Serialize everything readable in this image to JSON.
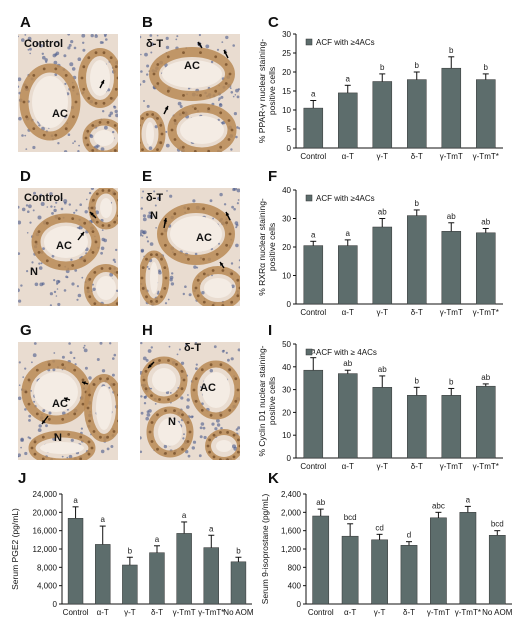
{
  "panels": {
    "A": {
      "letter": "A",
      "label": "Control",
      "tags": [
        "AC"
      ]
    },
    "B": {
      "letter": "B",
      "label": "δ-T",
      "tags": [
        "AC"
      ]
    },
    "D": {
      "letter": "D",
      "label": "Control",
      "tags": [
        "AC",
        "N"
      ]
    },
    "E": {
      "letter": "E",
      "label": "δ-T",
      "tags": [
        "N",
        "AC"
      ]
    },
    "G": {
      "letter": "G",
      "label": "",
      "tags": [
        "AC",
        "N"
      ]
    },
    "H": {
      "letter": "H",
      "label": "δ-T",
      "tags": [
        "AC",
        "N"
      ]
    }
  },
  "colors": {
    "bar": "#5d6d6c",
    "stain_bg": "#e9dcd0",
    "stain_cell": "#b98a55",
    "nuclei": "#4a5a8c"
  },
  "chart_data": [
    {
      "id": "C",
      "letter": "C",
      "type": "bar",
      "categories": [
        "Control",
        "α-T",
        "γ-T",
        "δ-T",
        "γ-TmT",
        "γ-TmT*"
      ],
      "series": [
        {
          "name": "ACF with ≥4ACs",
          "values": [
            10.5,
            14.5,
            17.5,
            18,
            21,
            18
          ]
        }
      ],
      "errors": [
        2,
        2,
        2,
        2,
        3,
        1.5
      ],
      "sig": [
        "a",
        "a",
        "b",
        "b",
        "b",
        "b"
      ],
      "ylabel": "% PPAR-γ nuclear staining-\npositive cells",
      "ylim": [
        0,
        30
      ],
      "yticks": [
        0,
        5,
        10,
        15,
        20,
        25,
        30
      ],
      "legend": "top-left"
    },
    {
      "id": "F",
      "letter": "F",
      "type": "bar",
      "categories": [
        "Control",
        "α-T",
        "γ-T",
        "δ-T",
        "γ-TmT",
        "γ-TmT*"
      ],
      "series": [
        {
          "name": "ACF with ≥4ACs",
          "values": [
            20.5,
            20.5,
            27,
            31,
            25.5,
            25
          ]
        }
      ],
      "errors": [
        1.5,
        2,
        3,
        2,
        3,
        1.5
      ],
      "sig": [
        "a",
        "a",
        "ab",
        "b",
        "ab",
        "ab"
      ],
      "ylabel": "% RXRα nuclear staining-\npositive cells",
      "ylim": [
        0,
        40
      ],
      "yticks": [
        0,
        10,
        20,
        30,
        40
      ],
      "legend": "top-left"
    },
    {
      "id": "I",
      "letter": "I",
      "type": "bar",
      "categories": [
        "Control",
        "α-T",
        "γ-T",
        "δ-T",
        "γ-TmT",
        "γ-TmT*"
      ],
      "series": [
        {
          "name": "ACF with ≥ 4ACs",
          "values": [
            38.5,
            37,
            31,
            27.5,
            27.5,
            31.5
          ]
        }
      ],
      "errors": [
        5.5,
        1.5,
        5,
        3.5,
        3,
        1
      ],
      "sig": [
        "a",
        "ab",
        "ab",
        "b",
        "b",
        "ab"
      ],
      "ylabel": "% Cyclin D1 nuclear staining-\npositive cells",
      "ylim": [
        0,
        50
      ],
      "yticks": [
        0,
        10,
        20,
        30,
        40,
        50
      ],
      "legend": "top-left"
    },
    {
      "id": "J",
      "letter": "J",
      "type": "bar",
      "categories": [
        "Control",
        "α-T",
        "γ-T",
        "δ-T",
        "γ-TmT",
        "γ-TmT*",
        "No AOM"
      ],
      "series": [
        {
          "values": [
            18700,
            13000,
            8500,
            11200,
            15400,
            12300,
            9200
          ]
        }
      ],
      "errors": [
        2500,
        4000,
        1700,
        1500,
        2500,
        2700,
        1000
      ],
      "sig": [
        "a",
        "a",
        "b",
        "a",
        "a",
        "a",
        "b"
      ],
      "ylabel": "Serum PGE2 (pg/mL)",
      "ylim": [
        0,
        24000
      ],
      "yticks": [
        0,
        4000,
        8000,
        12000,
        16000,
        20000,
        24000
      ],
      "ytick_labels": [
        "0",
        "4,000",
        "8,000",
        "12,000",
        "16,000",
        "20,000",
        "24,000"
      ]
    },
    {
      "id": "K",
      "letter": "K",
      "type": "bar",
      "categories": [
        "Control",
        "α-T",
        "γ-T",
        "δ-T",
        "γ-TmT",
        "γ-TmT*",
        "No AOM"
      ],
      "series": [
        {
          "values": [
            1920,
            1480,
            1400,
            1280,
            1880,
            2000,
            1500
          ]
        }
      ],
      "errors": [
        150,
        270,
        120,
        80,
        120,
        130,
        100
      ],
      "sig": [
        "ab",
        "bcd",
        "cd",
        "d",
        "abc",
        "a",
        "bcd"
      ],
      "ylabel": "Serum 9-isoprostane (pg/mL)",
      "ylim": [
        0,
        2400
      ],
      "yticks": [
        0,
        400,
        800,
        1200,
        1600,
        2000,
        2400
      ],
      "ytick_labels": [
        "0",
        "400",
        "800",
        "1,200",
        "1,600",
        "2,000",
        "2,400"
      ]
    }
  ]
}
